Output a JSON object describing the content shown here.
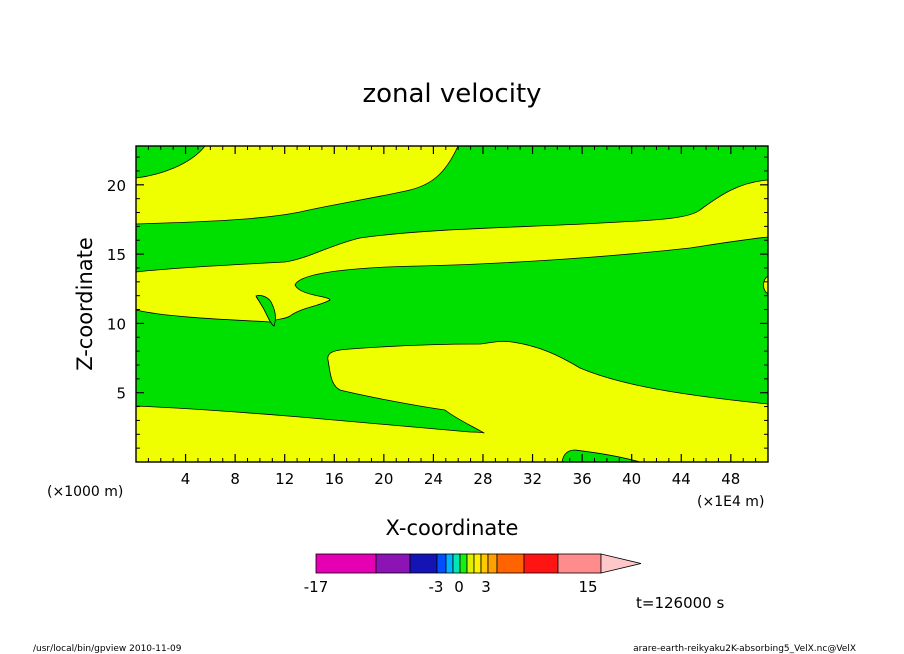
{
  "chart_data": {
    "type": "contour",
    "title": "zonal velocity",
    "xlabel": "X-coordinate",
    "ylabel": "Z-coordinate",
    "x_unit_left": "(×1000 m)",
    "x_unit_right": "(×1E4 m)",
    "xlim": [
      0,
      51
    ],
    "ylim": [
      0,
      22.8
    ],
    "x_ticks": [
      4,
      8,
      12,
      16,
      20,
      24,
      28,
      32,
      36,
      40,
      44,
      48
    ],
    "y_ticks": [
      5,
      10,
      15,
      20
    ],
    "time_label": "t=126000 s",
    "colorbar": {
      "ticks": [
        "-17",
        "-3",
        "0",
        "3",
        "15"
      ],
      "colors": [
        "#e600b4",
        "#8c14b4",
        "#1414b4",
        "#0050ff",
        "#00b4ff",
        "#00e6b4",
        "#14f014",
        "#dcf000",
        "#fff000",
        "#ffc800",
        "#ffa000",
        "#ff6400",
        "#ff1414",
        "#ff8c8c"
      ],
      "extend_color": "#ffc8c8",
      "shown_levels": {
        "green": "0 to 3 (approx.)",
        "yellow": "3 to 6 (approx.)"
      }
    },
    "fill_colors": {
      "low": "#00e000",
      "high": "#f0ff00"
    }
  },
  "footer": {
    "left": "/usr/local/bin/gpview  2010-11-09",
    "right": "arare-earth-reikyaku2K-absorbing5_VelX.nc@VelX"
  }
}
